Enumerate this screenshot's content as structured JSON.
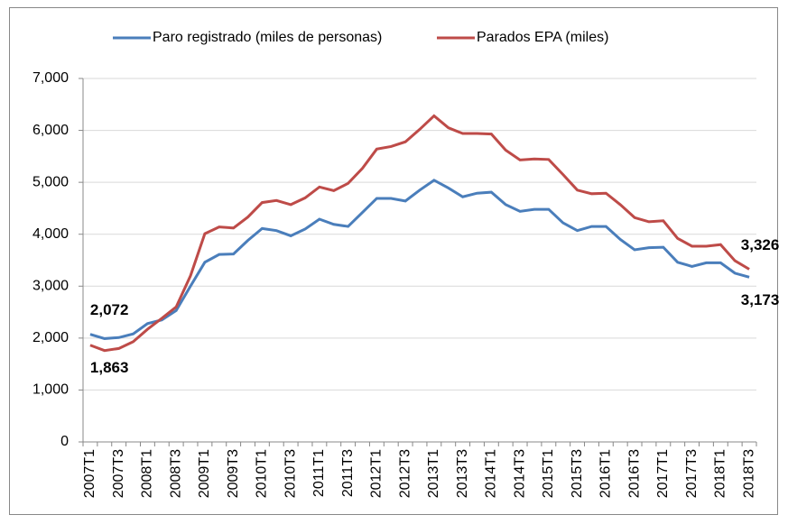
{
  "chart_data": {
    "type": "line",
    "categories": [
      "2007T1",
      null,
      "2007T3",
      null,
      "2008T1",
      null,
      "2008T3",
      null,
      "2009T1",
      null,
      "2009T3",
      null,
      "2010T1",
      null,
      "2010T3",
      null,
      "2011T1",
      null,
      "2011T3",
      null,
      "2012T1",
      null,
      "2012T3",
      null,
      "2013T1",
      null,
      "2013T3",
      null,
      "2014T1",
      null,
      "2014T3",
      null,
      "2015T1",
      null,
      "2015T3",
      null,
      "2016T1",
      null,
      "2016T3",
      null,
      "2017T1",
      null,
      "2017T3",
      null,
      "2018T1",
      null,
      "2018T3"
    ],
    "series": [
      {
        "name": "Paro registrado (miles de personas)",
        "color": "#4a7ebb",
        "values": [
          2072,
          1990,
          2010,
          2080,
          2280,
          2350,
          2530,
          3000,
          3460,
          3610,
          3620,
          3880,
          4110,
          4070,
          3970,
          4100,
          4290,
          4190,
          4150,
          4420,
          4690,
          4690,
          4640,
          4850,
          5040,
          4890,
          4720,
          4790,
          4810,
          4570,
          4440,
          4480,
          4480,
          4220,
          4070,
          4150,
          4150,
          3900,
          3700,
          3740,
          3750,
          3460,
          3380,
          3450,
          3450,
          3250,
          3173
        ],
        "value_labels": [
          "2,072",
          null,
          null,
          null,
          null,
          null,
          null,
          null,
          null,
          null,
          null,
          null,
          null,
          null,
          null,
          null,
          null,
          null,
          null,
          null,
          null,
          null,
          null,
          null,
          null,
          null,
          null,
          null,
          null,
          null,
          null,
          null,
          null,
          null,
          null,
          null,
          null,
          null,
          null,
          null,
          null,
          null,
          null,
          null,
          null,
          null,
          "3,173"
        ]
      },
      {
        "name": "Parados EPA (miles)",
        "color": "#be4b48",
        "values": [
          1863,
          1760,
          1800,
          1930,
          2170,
          2380,
          2600,
          3200,
          4010,
          4140,
          4120,
          4330,
          4610,
          4650,
          4570,
          4700,
          4910,
          4840,
          4980,
          5270,
          5640,
          5690,
          5780,
          6020,
          6280,
          6050,
          5940,
          5940,
          5930,
          5620,
          5430,
          5450,
          5440,
          5150,
          4850,
          4780,
          4790,
          4570,
          4320,
          4240,
          4260,
          3920,
          3770,
          3770,
          3800,
          3490,
          3326
        ],
        "value_labels": [
          "1,863",
          null,
          null,
          null,
          null,
          null,
          null,
          null,
          null,
          null,
          null,
          null,
          null,
          null,
          null,
          null,
          null,
          null,
          null,
          null,
          null,
          null,
          null,
          null,
          null,
          null,
          null,
          null,
          null,
          null,
          null,
          null,
          null,
          null,
          null,
          null,
          null,
          null,
          null,
          null,
          null,
          null,
          null,
          null,
          null,
          null,
          "3,326"
        ]
      }
    ],
    "ylim": [
      0,
      7000
    ],
    "yticks": [
      0,
      {
        "value": 1000,
        "label": "1,000"
      },
      {
        "value": 2000,
        "label": "2,000"
      },
      {
        "value": 3000,
        "label": "3,000"
      },
      {
        "value": 4000,
        "label": "4,000"
      },
      {
        "value": 5000,
        "label": "5,000"
      },
      {
        "value": 6000,
        "label": "6,000"
      },
      {
        "value": 7000,
        "label": "7,000"
      }
    ],
    "grid": true,
    "legend": "top"
  }
}
